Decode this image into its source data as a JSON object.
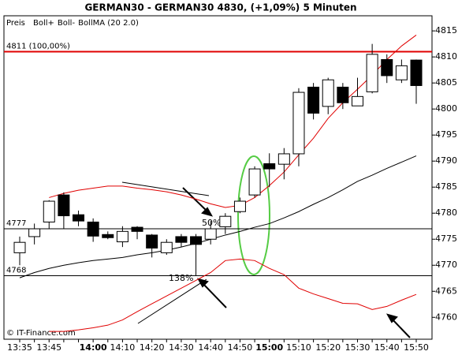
{
  "chart_data": {
    "type": "candlestick",
    "title": "GERMAN30 - GERMAN30    4830, (+1,09%)    5 Minuten",
    "price_label": "Preis",
    "copyright": "© IT-Finance.com",
    "categories": [
      "13:35",
      null,
      "13:45",
      null,
      null,
      "14:00",
      null,
      "14:10",
      null,
      "14:20",
      null,
      "14:30",
      null,
      "14:40",
      null,
      "14:50",
      null,
      "15:00",
      null,
      "15:10",
      null,
      "15:20",
      null,
      "15:30",
      null,
      "15:40",
      null,
      "15:50"
    ],
    "open": [
      4772.4,
      4775.5,
      4778.3,
      4783.5,
      4779.7,
      4778.3,
      4775.9,
      4774.5,
      4777.3,
      4775.8,
      4772.4,
      4775.5,
      4775.5,
      4775.0,
      4777.4,
      4780.3,
      4783.5,
      4789.5,
      4789.4,
      4791.4,
      4804.2,
      4800.5,
      4804.2,
      4800.6,
      4803.3,
      4809.5,
      4805.6,
      4809.4
    ],
    "high": [
      4775.5,
      4778.0,
      4782.5,
      4784.0,
      4780.5,
      4779.0,
      4776.5,
      4777.5,
      4777.5,
      4776.0,
      4775.0,
      4776.0,
      4776.0,
      4778.5,
      4780.0,
      4783.0,
      4789.0,
      4791.5,
      4792.5,
      4804.0,
      4805.0,
      4806.0,
      4805.0,
      4806.0,
      4812.5,
      4810.5,
      4809.5,
      4809.5
    ],
    "low": [
      4770.0,
      4774.0,
      4777.0,
      4777.0,
      4777.5,
      4774.5,
      4775.0,
      4773.5,
      4775.0,
      4771.5,
      4772.0,
      4773.5,
      4768.0,
      4774.0,
      4776.0,
      4780.0,
      4783.0,
      4785.0,
      4786.5,
      4789.0,
      4798.0,
      4799.0,
      4800.0,
      4800.6,
      4803.0,
      4805.0,
      4805.0,
      4801.0
    ],
    "close": [
      4774.4,
      4777.0,
      4782.3,
      4779.5,
      4778.5,
      4775.6,
      4775.3,
      4776.5,
      4776.5,
      4773.3,
      4774.4,
      4774.4,
      4774.0,
      4777.0,
      4779.4,
      4782.3,
      4788.5,
      4788.5,
      4791.4,
      4803.2,
      4799.2,
      4805.6,
      4801.2,
      4802.4,
      4810.5,
      4806.4,
      4808.3,
      4804.5
    ],
    "up_color": "#ffffff",
    "down_color": "#000000",
    "series": [
      {
        "name": "Boll+",
        "color": "#e00000",
        "values": [
          null,
          null,
          4783.0,
          4783.8,
          4784.4,
          4784.8,
          4785.2,
          4785.2,
          4784.8,
          4784.5,
          4784.1,
          4783.5,
          4782.7,
          4781.8,
          4781.1,
          4781.5,
          4783.0,
          4785.3,
          4787.9,
          4791.2,
          4794.4,
          4798.2,
          4801.2,
          4803.8,
          4806.5,
          4809.5,
          4812.1,
          4814.2
        ]
      },
      {
        "name": "Boll-",
        "color": "#e00000",
        "values": [
          null,
          null,
          4757.3,
          4757.3,
          4757.6,
          4758.0,
          4758.5,
          4759.5,
          4761.1,
          4762.6,
          4764.1,
          4765.6,
          4767.1,
          4768.6,
          4770.9,
          4771.2,
          4770.9,
          4769.4,
          4768.2,
          4765.6,
          4764.5,
          4763.6,
          4762.7,
          4762.6,
          4761.5,
          4762.1,
          4763.3,
          4764.4
        ]
      },
      {
        "name": "BollMA (20 2.0)",
        "color": "#000000",
        "values": [
          4767.6,
          4768.6,
          4769.4,
          4770.0,
          4770.5,
          4770.9,
          4771.2,
          4771.5,
          4772.0,
          4772.4,
          4772.9,
          4773.5,
          4774.2,
          4775.0,
          4775.8,
          4776.5,
          4777.3,
          4778.0,
          4779.1,
          4780.3,
          4781.7,
          4783.0,
          4784.5,
          4786.1,
          4787.3,
          4788.6,
          4789.8,
          4791.0
        ]
      }
    ],
    "levels": [
      {
        "value": 4811,
        "label": "4811 (100,00%)",
        "color": "#e00000"
      },
      {
        "value": 4777,
        "label": "4777",
        "color": "#000000"
      },
      {
        "value": 4768,
        "label": "4768",
        "color": "#000000"
      }
    ],
    "annotations": [
      "50%",
      "138%"
    ],
    "ylim": [
      4755.8,
      4817.9
    ],
    "yticks": [
      4760,
      4765,
      4770,
      4775,
      4780,
      4785,
      4790,
      4795,
      4800,
      4805,
      4810,
      4815
    ]
  }
}
